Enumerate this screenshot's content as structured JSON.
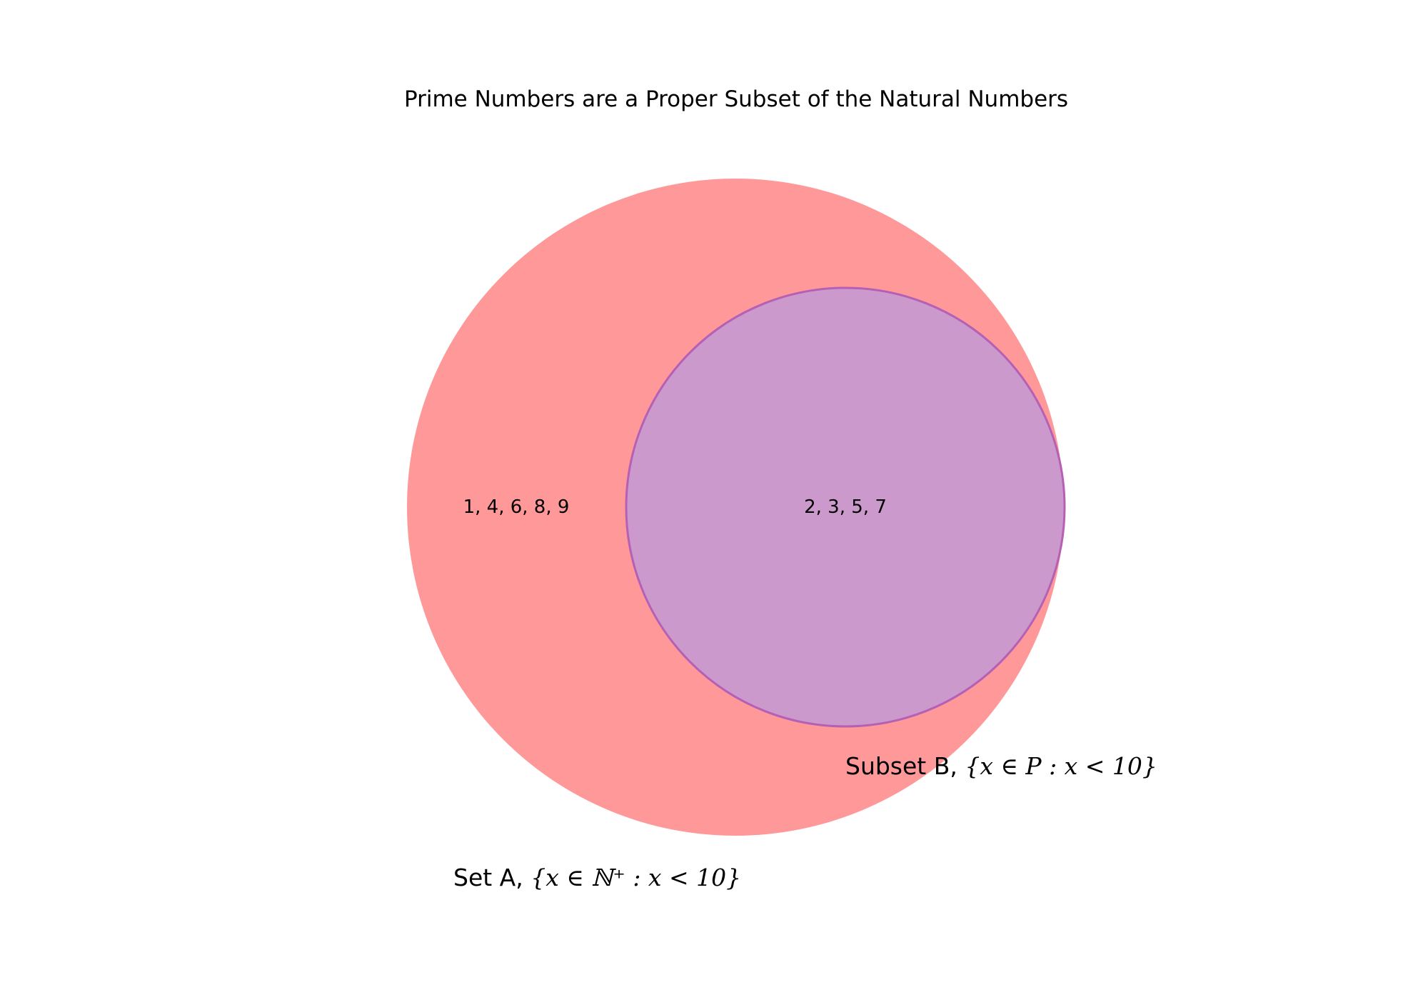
{
  "title": "Prime Numbers are a Proper Subset of the Natural Numbers",
  "sets": {
    "a": {
      "label_prefix": "Set A, ",
      "label_math": "{x ∈ ℕ⁺ : x < 10}",
      "region_values": "1, 4, 6, 8, 9",
      "color": "#ff9999"
    },
    "b": {
      "label_prefix": "Subset B, ",
      "label_math": "{x ∈ P : x < 10}",
      "region_values": "2, 3, 5, 7",
      "color": "#cc99cc",
      "outline_color": "#b560b5"
    }
  }
}
